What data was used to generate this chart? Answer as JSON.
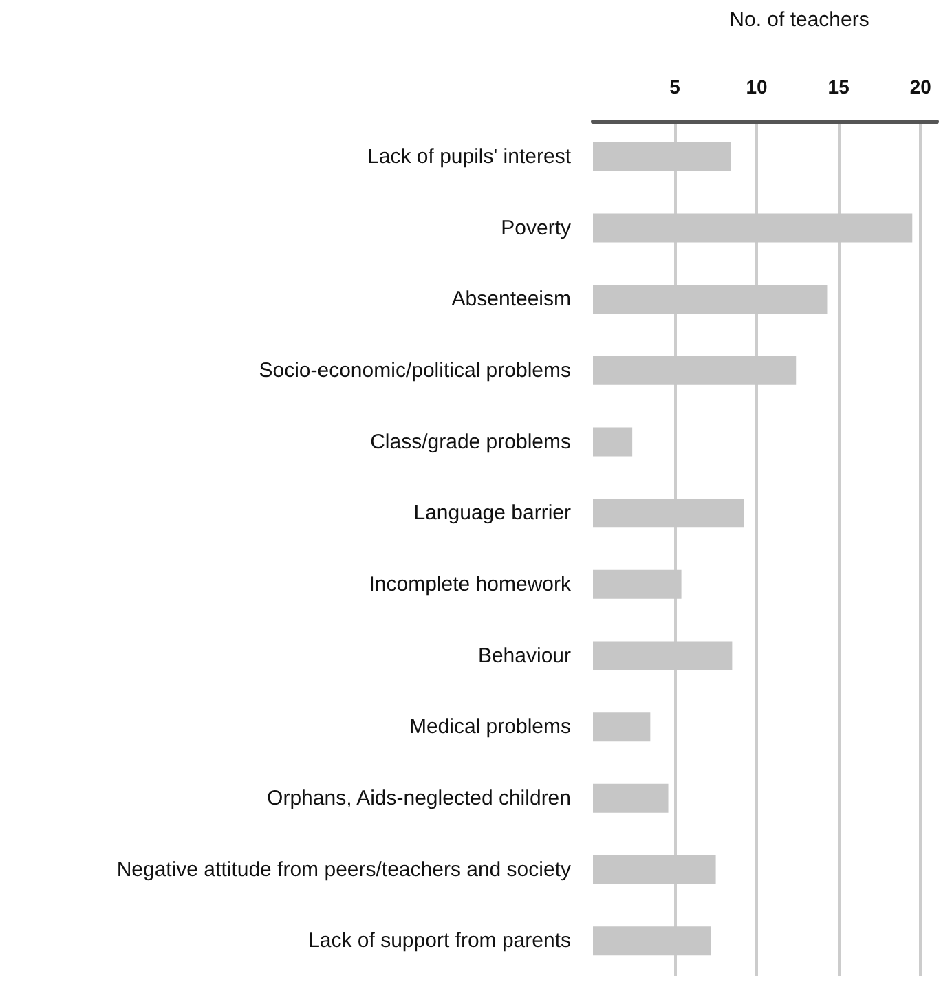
{
  "chart_data": {
    "type": "bar",
    "orientation": "horizontal",
    "xlabel": "No. of teachers",
    "categories": [
      "Lack of pupils' interest",
      "Poverty",
      "Absenteeism",
      "Socio-economic/political problems",
      "Class/grade problems",
      "Language barrier",
      "Incomplete homework",
      "Behaviour",
      "Medical problems",
      "Orphans, Aids-neglected children",
      "Negative attitude from peers/teachers and society",
      "Lack of support from parents"
    ],
    "values": [
      8.4,
      19.5,
      14.3,
      12.4,
      2.4,
      9.2,
      5.4,
      8.5,
      3.5,
      4.6,
      7.5,
      7.2
    ],
    "color": "#c6c6c6",
    "xlim": [
      0,
      21
    ],
    "xticks": [
      5,
      10,
      15,
      20
    ],
    "grid": "x"
  }
}
